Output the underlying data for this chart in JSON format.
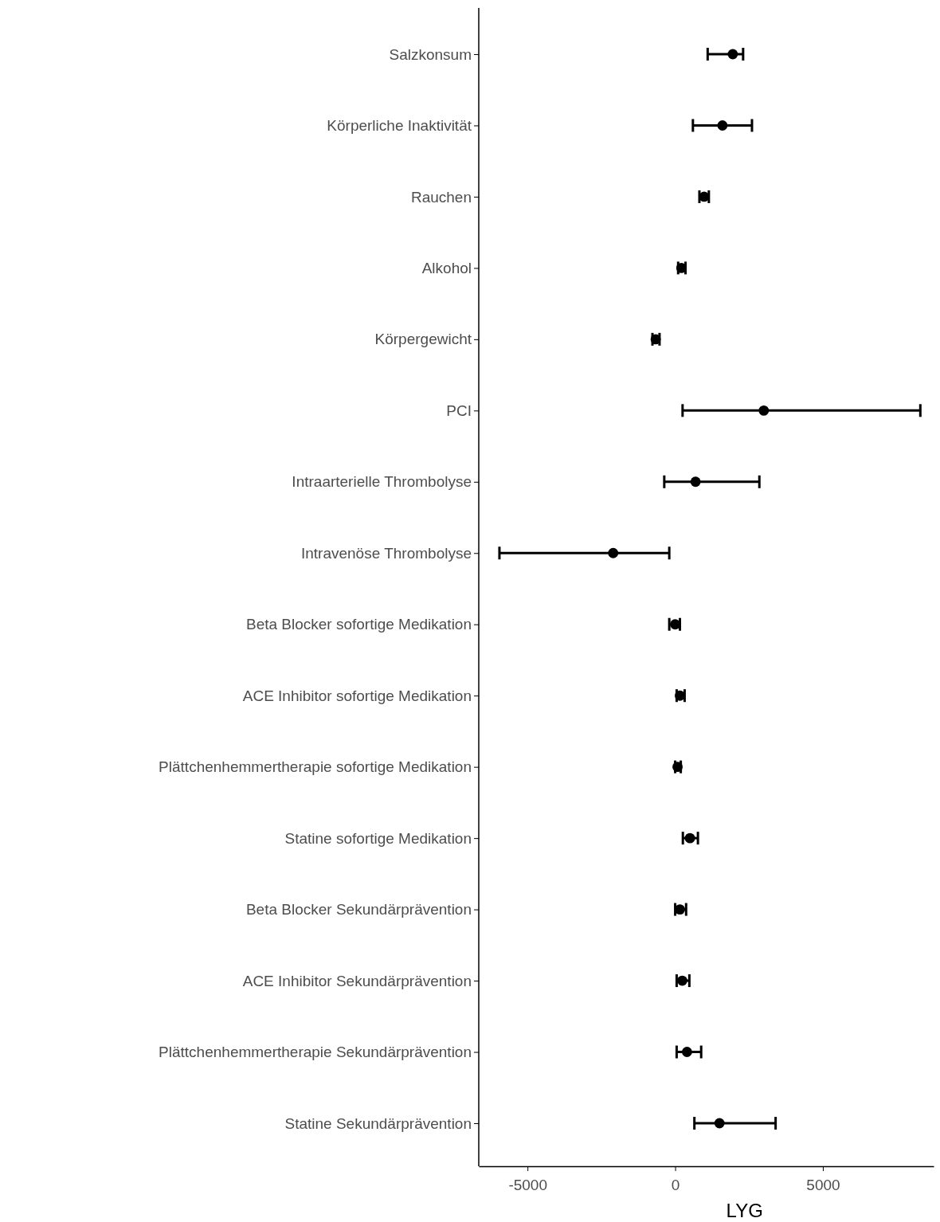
{
  "chart_data": {
    "type": "scatter",
    "orientation": "horizontal",
    "xlabel": "LYG",
    "categories": [
      "Salzkonsum",
      "Körperliche Inaktivität",
      "Rauchen",
      "Alkohol",
      "Körpergewicht",
      "PCI",
      "Intraarterielle Thrombolyse",
      "Intravenöse Thrombolyse",
      "Beta Blocker sofortige Medikation",
      "ACE Inhibitor sofortige Medikation",
      "Plättchenhemmertherapie sofortige Medikation",
      "Statine sofortige Medikation",
      "Beta Blocker Sekundärprävention",
      "ACE Inhibitor Sekundärprävention",
      "Plättchenhemmertherapie Sekundärprävention",
      "Statine Sekundärprävention"
    ],
    "values": [
      1950,
      1600,
      980,
      210,
      -660,
      3000,
      690,
      -2100,
      0,
      160,
      80,
      500,
      160,
      240,
      400,
      1500
    ],
    "errors": [
      [
        1100,
        2300
      ],
      [
        600,
        2600
      ],
      [
        820,
        1140
      ],
      [
        100,
        350
      ],
      [
        -770,
        -530
      ],
      [
        250,
        8300
      ],
      [
        -370,
        2850
      ],
      [
        -5950,
        -200
      ],
      [
        -200,
        160
      ],
      [
        50,
        320
      ],
      [
        0,
        190
      ],
      [
        260,
        770
      ],
      [
        0,
        370
      ],
      [
        50,
        480
      ],
      [
        50,
        880
      ],
      [
        650,
        3400
      ]
    ],
    "color": "#000000",
    "marker": "circle",
    "grid": false,
    "xlim": [
      -6650,
      8750
    ],
    "xticks": [
      -5000,
      0,
      5000
    ]
  }
}
